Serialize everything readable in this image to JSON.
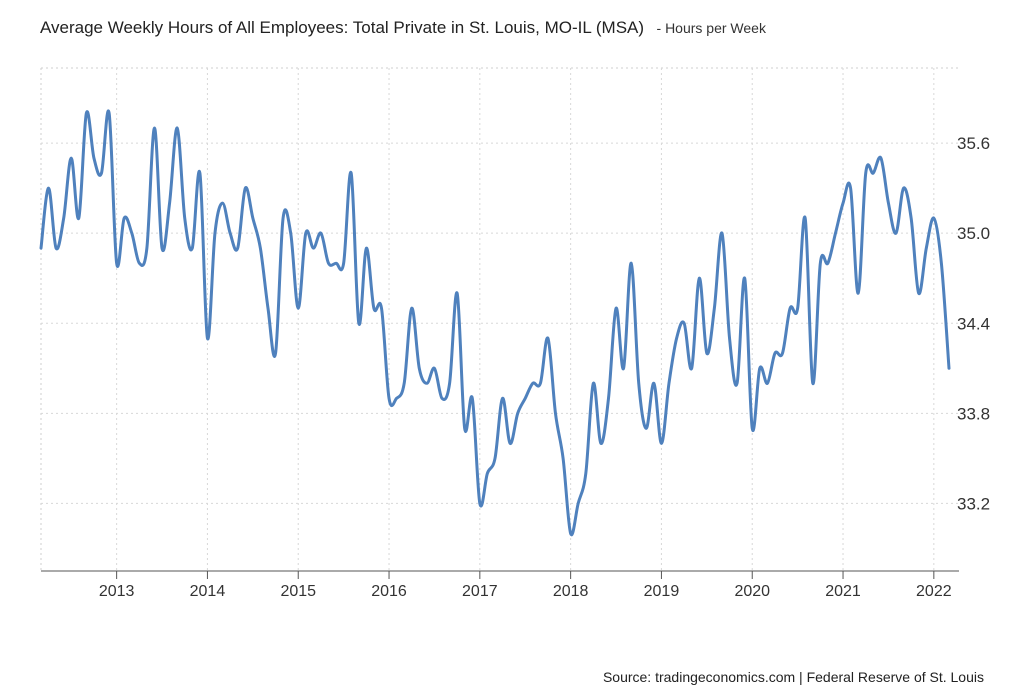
{
  "chart_data": {
    "type": "line",
    "title": "Average Weekly Hours of All Employees: Total Private in St. Louis, MO-IL (MSA)",
    "subtitle": "- Hours per Week",
    "source": "Source: tradingeconomics.com | Federal Reserve of St. Louis",
    "y_ticks": [
      "33.2",
      "33.8",
      "34.4",
      "35.0",
      "35.6"
    ],
    "x_ticks": [
      "2013",
      "2014",
      "2015",
      "2016",
      "2017",
      "2018",
      "2019",
      "2020",
      "2021",
      "2022"
    ],
    "xlim": [
      2012.167,
      2022.167
    ],
    "ylim": [
      32.75,
      36.1
    ],
    "grid": true,
    "line_color": "#4f81bd",
    "series": [
      {
        "x": [
          2012.167,
          2012.25,
          2012.333,
          2012.417,
          2012.5,
          2012.583,
          2012.667,
          2012.75,
          2012.833,
          2012.917,
          2013.0,
          2013.083,
          2013.167,
          2013.25,
          2013.333,
          2013.417,
          2013.5,
          2013.583,
          2013.667,
          2013.75,
          2013.833,
          2013.917,
          2014.0,
          2014.083,
          2014.167,
          2014.25,
          2014.333,
          2014.417,
          2014.5,
          2014.583,
          2014.667,
          2014.75,
          2014.833,
          2014.917,
          2015.0,
          2015.083,
          2015.167,
          2015.25,
          2015.333,
          2015.417,
          2015.5,
          2015.583,
          2015.667,
          2015.75,
          2015.833,
          2015.917,
          2016.0,
          2016.083,
          2016.167,
          2016.25,
          2016.333,
          2016.417,
          2016.5,
          2016.583,
          2016.667,
          2016.75,
          2016.833,
          2016.917,
          2017.0,
          2017.083,
          2017.167,
          2017.25,
          2017.333,
          2017.417,
          2017.5,
          2017.583,
          2017.667,
          2017.75,
          2017.833,
          2017.917,
          2018.0,
          2018.083,
          2018.167,
          2018.25,
          2018.333,
          2018.417,
          2018.5,
          2018.583,
          2018.667,
          2018.75,
          2018.833,
          2018.917,
          2019.0,
          2019.083,
          2019.167,
          2019.25,
          2019.333,
          2019.417,
          2019.5,
          2019.583,
          2019.667,
          2019.75,
          2019.833,
          2019.917,
          2020.0,
          2020.083,
          2020.167,
          2020.25,
          2020.333,
          2020.417,
          2020.5,
          2020.583,
          2020.667,
          2020.75,
          2020.833,
          2020.917,
          2021.0,
          2021.083,
          2021.167,
          2021.25,
          2021.333,
          2021.417,
          2021.5,
          2021.583,
          2021.667,
          2021.75,
          2021.833,
          2021.917,
          2022.0,
          2022.083,
          2022.167
        ],
        "y": [
          34.9,
          35.3,
          34.9,
          35.1,
          35.5,
          35.1,
          35.8,
          35.5,
          35.4,
          35.8,
          34.8,
          35.1,
          35.0,
          34.8,
          34.9,
          35.7,
          34.9,
          35.2,
          35.7,
          35.1,
          34.9,
          35.4,
          34.3,
          35.0,
          35.2,
          35.0,
          34.9,
          35.3,
          35.1,
          34.9,
          34.5,
          34.2,
          35.1,
          35.0,
          34.5,
          35.0,
          34.9,
          35.0,
          34.8,
          34.8,
          34.8,
          35.4,
          34.4,
          34.9,
          34.5,
          34.5,
          33.9,
          33.9,
          34.0,
          34.5,
          34.1,
          34.0,
          34.1,
          33.9,
          34.0,
          34.6,
          33.7,
          33.9,
          33.2,
          33.4,
          33.5,
          33.9,
          33.6,
          33.8,
          33.9,
          34.0,
          34.0,
          34.3,
          33.8,
          33.5,
          33.0,
          33.2,
          33.4,
          34.0,
          33.6,
          33.9,
          34.5,
          34.1,
          34.8,
          34.0,
          33.7,
          34.0,
          33.6,
          34.0,
          34.3,
          34.4,
          34.1,
          34.7,
          34.2,
          34.5,
          35.0,
          34.3,
          34.0,
          34.7,
          33.7,
          34.1,
          34.0,
          34.2,
          34.2,
          34.5,
          34.5,
          35.1,
          34.0,
          34.8,
          34.8,
          35.0,
          35.2,
          35.3,
          34.6,
          35.4,
          35.4,
          35.5,
          35.2,
          35.0,
          35.3,
          35.1,
          34.6,
          34.9,
          35.1,
          34.8,
          34.1
        ]
      }
    ]
  }
}
